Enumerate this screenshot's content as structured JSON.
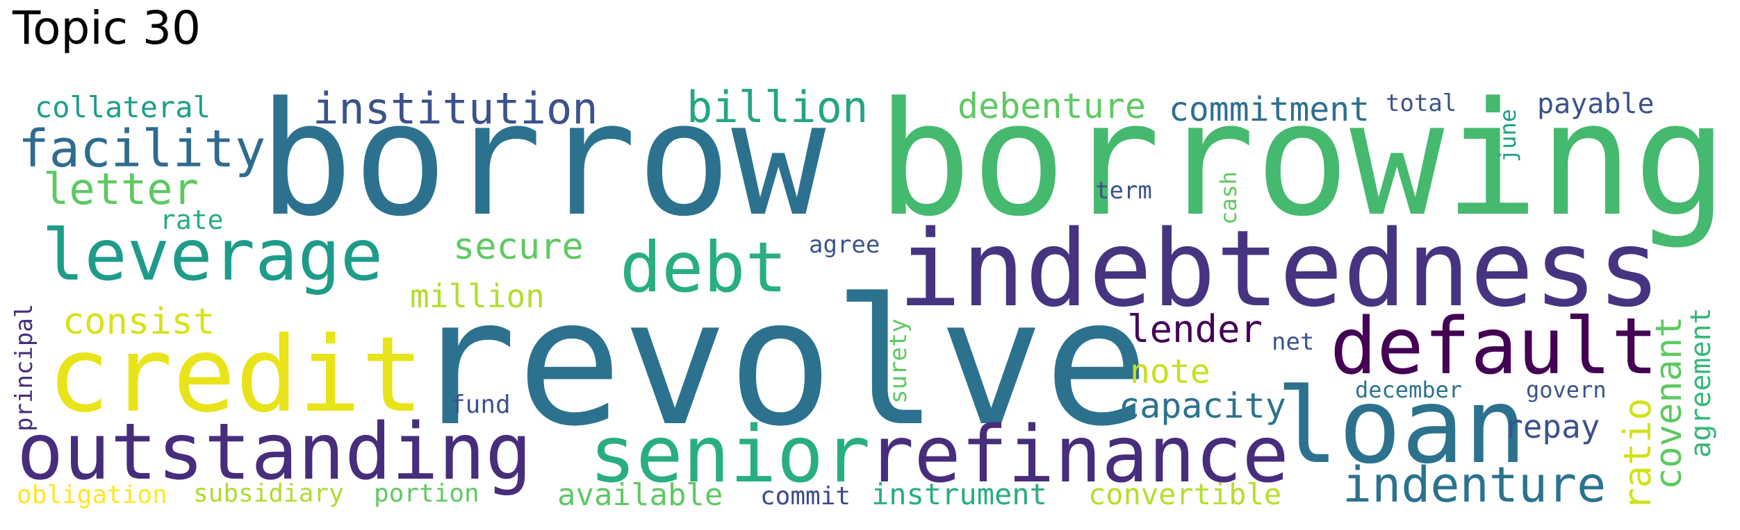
{
  "title": "Topic 30",
  "words": {
    "borrow": "borrow",
    "borrowing": "borrowing",
    "revolve": "revolve",
    "indebtedness": "indebtedness",
    "credit": "credit",
    "outstanding": "outstanding",
    "senior": "senior",
    "refinance": "refinance",
    "loan": "loan",
    "default": "default",
    "leverage": "leverage",
    "debt": "debt",
    "facility": "facility",
    "institution": "institution",
    "billion": "billion",
    "indenture": "indenture",
    "letter": "letter",
    "commitment": "commitment",
    "debenture": "debenture",
    "collateral": "collateral",
    "secure": "secure",
    "consist": "consist",
    "million": "million",
    "lender": "lender",
    "capacity": "capacity",
    "note": "note",
    "ratio": "ratio",
    "covenant": "covenant",
    "agreement": "agreement",
    "repay": "repay",
    "payable": "payable",
    "rate": "rate",
    "available": "available",
    "instrument": "instrument",
    "convertible": "convertible",
    "subsidiary": "subsidiary",
    "obligation": "obligation",
    "portion": "portion",
    "commit": "commit",
    "principal": "principal",
    "fund": "fund",
    "agree": "agree",
    "term": "term",
    "total": "total",
    "june": "june",
    "cash": "cash",
    "surety": "surety",
    "net": "net",
    "december": "december",
    "govern": "govern"
  },
  "colors": {
    "dark_purple": "#440154",
    "purple": "#472d7b",
    "indigo": "#3b528b",
    "blue": "#2c728e",
    "teal": "#21918c",
    "green": "#28ae80",
    "light_green": "#5ec962",
    "lime": "#addc30",
    "yellow": "#fde725"
  }
}
